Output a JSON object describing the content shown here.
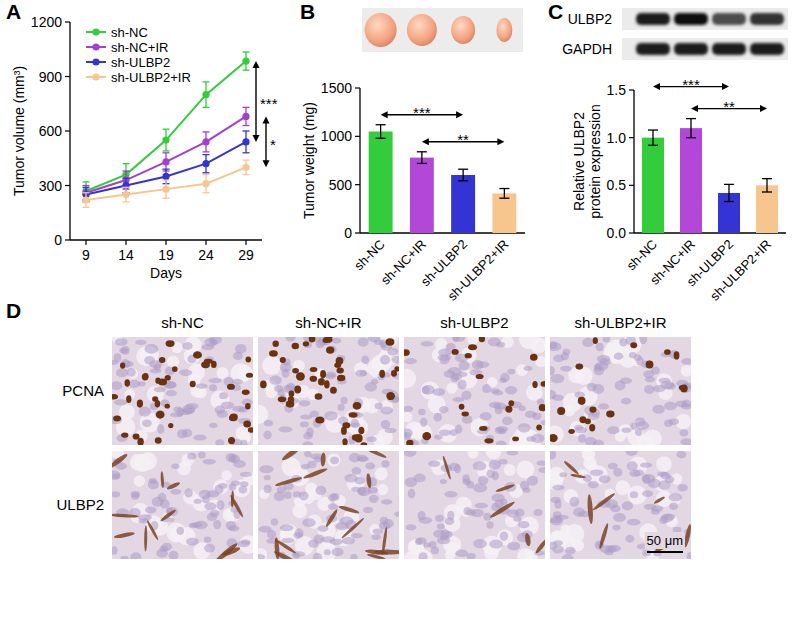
{
  "panel_letters": [
    "A",
    "B",
    "C",
    "D"
  ],
  "chart_data": [
    {
      "type": "line",
      "x": [
        9,
        14,
        19,
        24,
        29
      ],
      "xlim": [
        7,
        31
      ],
      "xticks": [
        9,
        14,
        19,
        24,
        29
      ],
      "ylim": [
        0,
        1200
      ],
      "yticks": [
        0,
        300,
        600,
        900,
        1200
      ],
      "x_label": "Days",
      "y_label": "Tumor volume (mm³)",
      "marker": "circle",
      "legend": "top-left",
      "series": [
        {
          "name": "sh-NC",
          "color": "#33cc3a",
          "values": [
            270,
            360,
            550,
            800,
            985
          ],
          "errors": [
            50,
            60,
            60,
            70,
            50
          ]
        },
        {
          "name": "sh-NC+IR",
          "color": "#a23fd0",
          "values": [
            260,
            330,
            430,
            540,
            680
          ],
          "errors": [
            40,
            50,
            50,
            55,
            50
          ]
        },
        {
          "name": "sh-ULBP2",
          "color": "#3434d4",
          "values": [
            250,
            300,
            350,
            420,
            540
          ],
          "errors": [
            40,
            40,
            40,
            50,
            60
          ]
        },
        {
          "name": "sh-ULBP2+IR",
          "color": "#f7c68f",
          "values": [
            220,
            250,
            280,
            310,
            400
          ],
          "errors": [
            40,
            40,
            50,
            50,
            40
          ]
        }
      ],
      "annotations": [
        {
          "text": "***",
          "from": "sh-NC",
          "to": "sh-ULBP2"
        },
        {
          "text": "*",
          "from": "sh-NC+IR",
          "to": "sh-ULBP2+IR"
        }
      ]
    },
    {
      "type": "bar",
      "categories": [
        "sh-NC",
        "sh-NC+IR",
        "sh-ULBP2",
        "sh-ULBP2+IR"
      ],
      "values": [
        1050,
        780,
        600,
        410
      ],
      "errors": [
        70,
        60,
        60,
        50
      ],
      "colors": [
        "#33cc3a",
        "#b247d8",
        "#3434d4",
        "#f7c68f"
      ],
      "ylim": [
        0,
        1500
      ],
      "yticks": [
        0,
        500,
        1000,
        1500
      ],
      "y_label": "Tumor weight (mg)",
      "annotations": [
        {
          "text": "***",
          "from": "sh-NC",
          "to": "sh-ULBP2"
        },
        {
          "text": "**",
          "from": "sh-NC+IR",
          "to": "sh-ULBP2+IR"
        }
      ]
    },
    {
      "type": "bar",
      "categories": [
        "sh-NC",
        "sh-NC+IR",
        "sh-ULBP2",
        "sh-ULBP2+IR"
      ],
      "values": [
        1.0,
        1.1,
        0.42,
        0.5
      ],
      "errors": [
        0.08,
        0.1,
        0.09,
        0.07
      ],
      "colors": [
        "#33cc3a",
        "#b247d8",
        "#3434d4",
        "#f7c68f"
      ],
      "ylim": [
        0,
        1.5
      ],
      "yticks": [
        {
          "value": 0,
          "label": "0.0"
        },
        {
          "value": 0.5,
          "label": "0.5"
        },
        {
          "value": 1,
          "label": "1.0"
        },
        {
          "value": 1.5,
          "label": "1.5"
        }
      ],
      "y_label": "Relative ULBP2 protein expression",
      "annotations": [
        {
          "text": "***",
          "from": "sh-NC",
          "to": "sh-ULBP2"
        },
        {
          "text": "**",
          "from": "sh-NC+IR",
          "to": "sh-ULBP2+IR"
        }
      ]
    }
  ],
  "blot": {
    "labels": [
      "ULBP2",
      "GAPDH"
    ]
  },
  "ihc": {
    "columns": [
      "sh-NC",
      "sh-NC+IR",
      "sh-ULBP2",
      "sh-ULBP2+IR"
    ],
    "rows": [
      "PCNA",
      "ULBP2"
    ],
    "scale_bar": "50 μm"
  }
}
